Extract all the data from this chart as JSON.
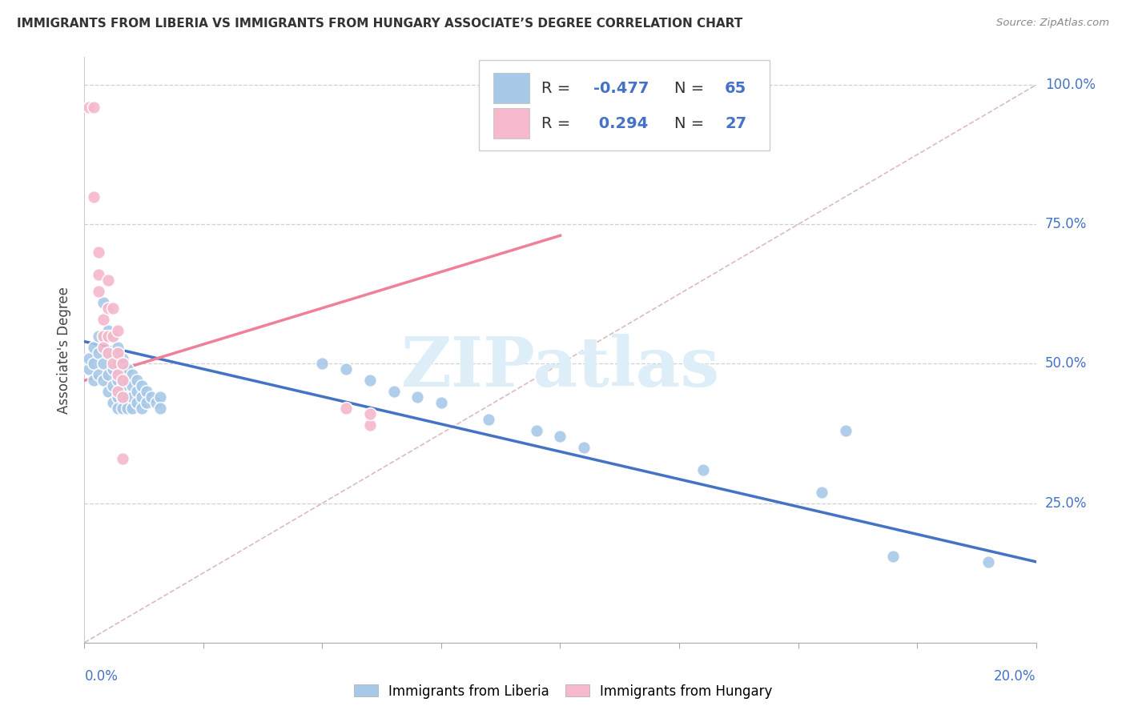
{
  "title": "IMMIGRANTS FROM LIBERIA VS IMMIGRANTS FROM HUNGARY ASSOCIATE’S DEGREE CORRELATION CHART",
  "source": "Source: ZipAtlas.com",
  "ylabel": "Associate's Degree",
  "xlim": [
    0.0,
    0.2
  ],
  "ylim": [
    0.0,
    1.05
  ],
  "ytick_labels": [
    "100.0%",
    "75.0%",
    "50.0%",
    "25.0%"
  ],
  "ytick_values": [
    1.0,
    0.75,
    0.5,
    0.25
  ],
  "xtick_left_label": "0.0%",
  "xtick_right_label": "20.0%",
  "liberia_color": "#a8c8e8",
  "hungary_color": "#f5b8cc",
  "liberia_line_color": "#4472c4",
  "hungary_line_color": "#f08098",
  "diagonal_line_color": "#ddbbbb",
  "watermark_text": "ZIPatlas",
  "watermark_color": "#ddeef8",
  "liberia_scatter": [
    [
      0.001,
      0.49
    ],
    [
      0.001,
      0.51
    ],
    [
      0.002,
      0.5
    ],
    [
      0.002,
      0.53
    ],
    [
      0.002,
      0.47
    ],
    [
      0.003,
      0.55
    ],
    [
      0.003,
      0.52
    ],
    [
      0.003,
      0.48
    ],
    [
      0.004,
      0.61
    ],
    [
      0.004,
      0.55
    ],
    [
      0.004,
      0.5
    ],
    [
      0.004,
      0.47
    ],
    [
      0.005,
      0.56
    ],
    [
      0.005,
      0.52
    ],
    [
      0.005,
      0.48
    ],
    [
      0.005,
      0.45
    ],
    [
      0.006,
      0.55
    ],
    [
      0.006,
      0.52
    ],
    [
      0.006,
      0.49
    ],
    [
      0.006,
      0.46
    ],
    [
      0.006,
      0.43
    ],
    [
      0.007,
      0.53
    ],
    [
      0.007,
      0.5
    ],
    [
      0.007,
      0.47
    ],
    [
      0.007,
      0.44
    ],
    [
      0.007,
      0.42
    ],
    [
      0.008,
      0.51
    ],
    [
      0.008,
      0.48
    ],
    [
      0.008,
      0.46
    ],
    [
      0.008,
      0.44
    ],
    [
      0.008,
      0.42
    ],
    [
      0.009,
      0.49
    ],
    [
      0.009,
      0.47
    ],
    [
      0.009,
      0.44
    ],
    [
      0.009,
      0.42
    ],
    [
      0.01,
      0.48
    ],
    [
      0.01,
      0.46
    ],
    [
      0.01,
      0.44
    ],
    [
      0.01,
      0.42
    ],
    [
      0.011,
      0.47
    ],
    [
      0.011,
      0.45
    ],
    [
      0.011,
      0.43
    ],
    [
      0.012,
      0.46
    ],
    [
      0.012,
      0.44
    ],
    [
      0.012,
      0.42
    ],
    [
      0.013,
      0.45
    ],
    [
      0.013,
      0.43
    ],
    [
      0.014,
      0.44
    ],
    [
      0.015,
      0.43
    ],
    [
      0.016,
      0.44
    ],
    [
      0.016,
      0.42
    ],
    [
      0.05,
      0.5
    ],
    [
      0.055,
      0.49
    ],
    [
      0.06,
      0.47
    ],
    [
      0.065,
      0.45
    ],
    [
      0.07,
      0.44
    ],
    [
      0.075,
      0.43
    ],
    [
      0.085,
      0.4
    ],
    [
      0.095,
      0.38
    ],
    [
      0.1,
      0.37
    ],
    [
      0.105,
      0.35
    ],
    [
      0.13,
      0.31
    ],
    [
      0.155,
      0.27
    ],
    [
      0.16,
      0.38
    ],
    [
      0.17,
      0.155
    ],
    [
      0.19,
      0.145
    ]
  ],
  "hungary_scatter": [
    [
      0.001,
      0.96
    ],
    [
      0.002,
      0.96
    ],
    [
      0.002,
      0.8
    ],
    [
      0.003,
      0.7
    ],
    [
      0.003,
      0.66
    ],
    [
      0.003,
      0.63
    ],
    [
      0.004,
      0.58
    ],
    [
      0.004,
      0.55
    ],
    [
      0.004,
      0.53
    ],
    [
      0.005,
      0.65
    ],
    [
      0.005,
      0.6
    ],
    [
      0.005,
      0.55
    ],
    [
      0.005,
      0.52
    ],
    [
      0.006,
      0.6
    ],
    [
      0.006,
      0.55
    ],
    [
      0.006,
      0.5
    ],
    [
      0.007,
      0.56
    ],
    [
      0.007,
      0.52
    ],
    [
      0.007,
      0.48
    ],
    [
      0.007,
      0.45
    ],
    [
      0.008,
      0.5
    ],
    [
      0.008,
      0.47
    ],
    [
      0.008,
      0.44
    ],
    [
      0.008,
      0.33
    ],
    [
      0.055,
      0.42
    ],
    [
      0.06,
      0.39
    ],
    [
      0.06,
      0.41
    ]
  ],
  "liberia_trend_x": [
    0.0,
    0.2
  ],
  "liberia_trend_y": [
    0.54,
    0.145
  ],
  "hungary_trend_x": [
    0.0,
    0.1
  ],
  "hungary_trend_y": [
    0.47,
    0.73
  ],
  "diagonal_trend_x": [
    0.0,
    0.2
  ],
  "diagonal_trend_y": [
    0.0,
    1.0
  ]
}
